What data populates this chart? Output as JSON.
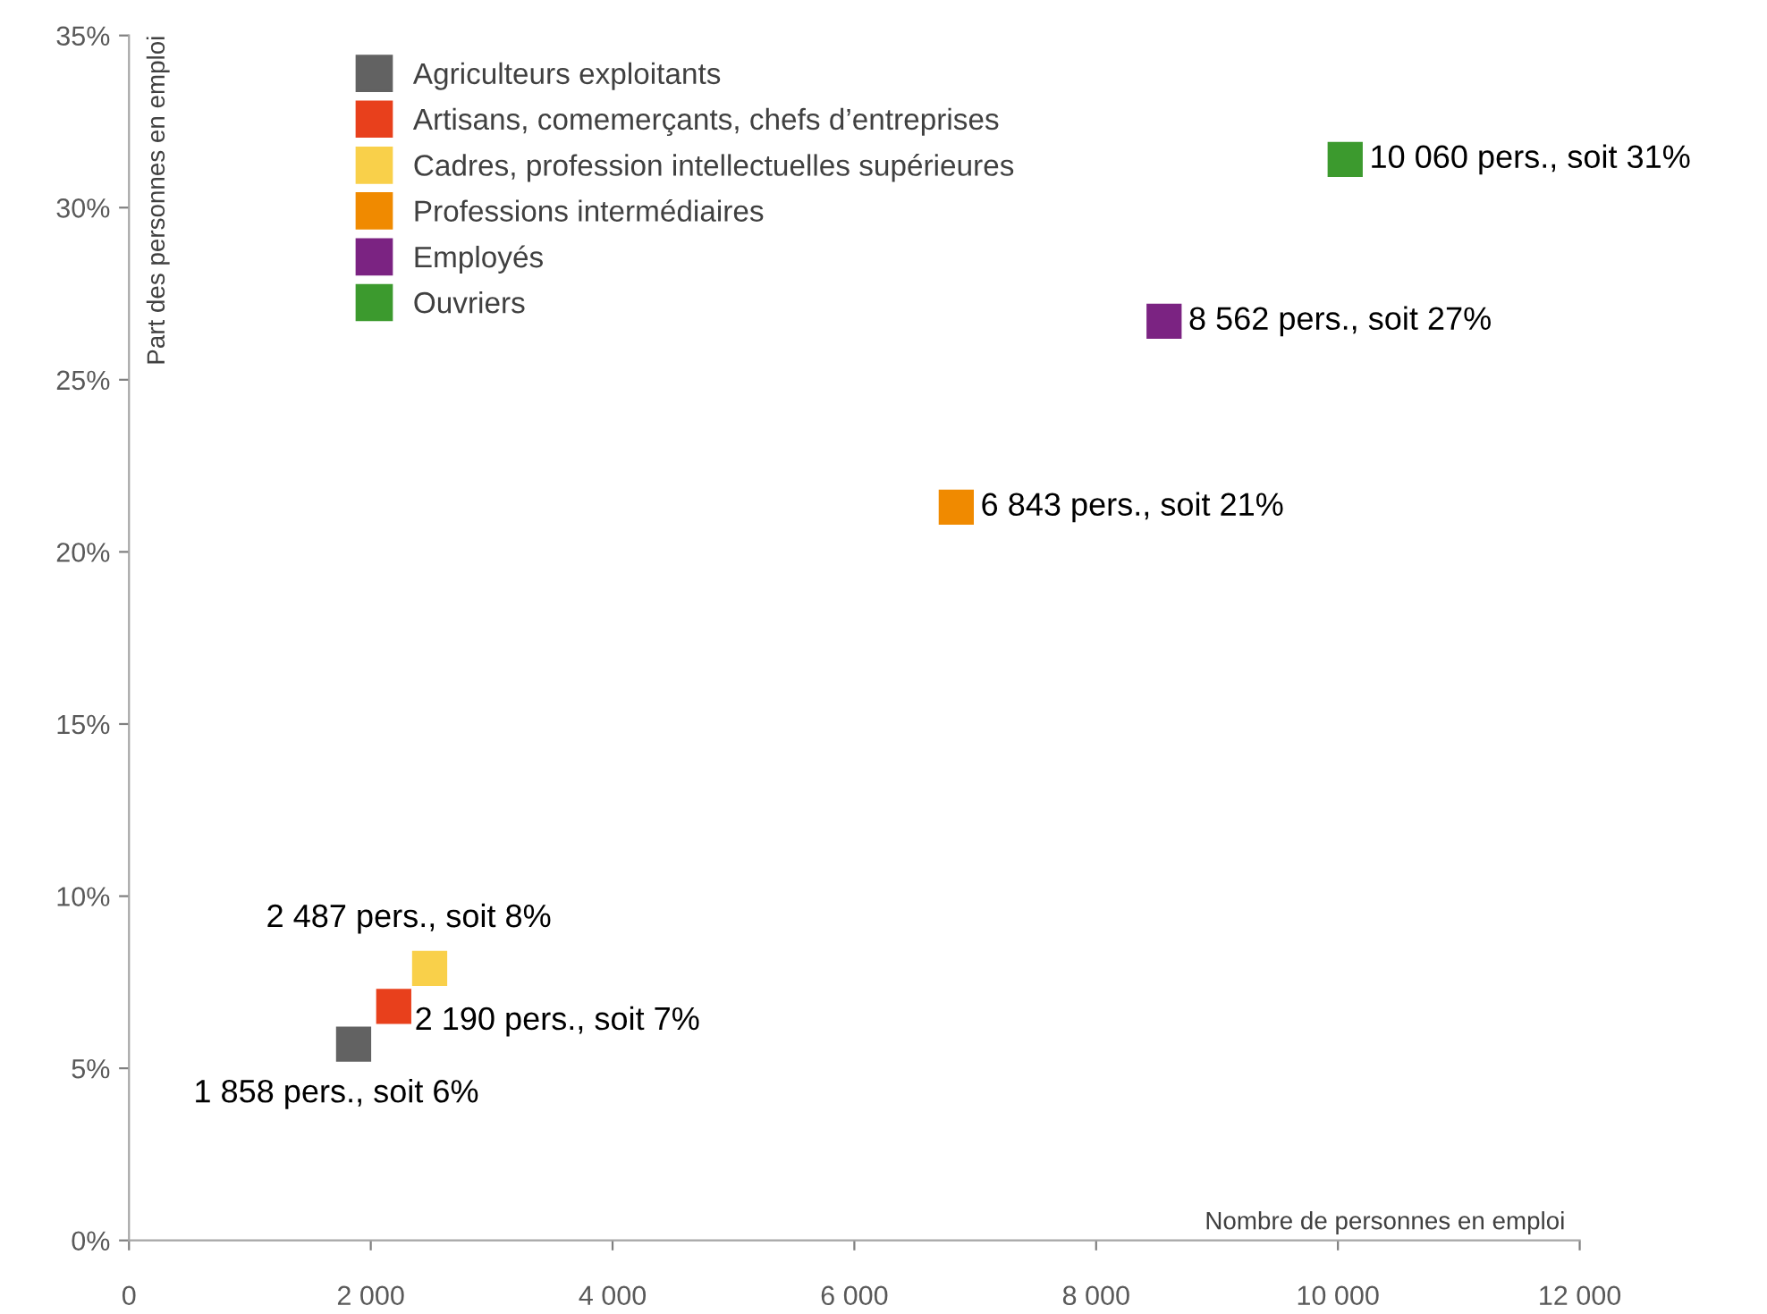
{
  "chart_data": {
    "type": "scatter",
    "xlabel": "Nombre de personnes en emploi",
    "ylabel": "Part des personnes en emploi",
    "xlim": [
      0,
      12000
    ],
    "xticks": [
      0,
      {
        "value": 2000,
        "label": "2 000"
      },
      {
        "value": 4000,
        "label": "4 000"
      },
      {
        "value": 6000,
        "label": "6 000"
      },
      {
        "value": 8000,
        "label": "8 000"
      },
      {
        "value": 10000,
        "label": "10 000"
      },
      {
        "value": 12000,
        "label": "12 000"
      }
    ],
    "ylim": [
      0,
      35
    ],
    "yticks": [
      {
        "value": 0,
        "label": "0%"
      },
      {
        "value": 5,
        "label": "5%"
      },
      {
        "value": 10,
        "label": "10%"
      },
      {
        "value": 15,
        "label": "15%"
      },
      {
        "value": 20,
        "label": "20%"
      },
      {
        "value": 25,
        "label": "25%"
      },
      {
        "value": 30,
        "label": "30%"
      },
      {
        "value": 35,
        "label": "35%"
      }
    ],
    "grid": false,
    "legend": "top left",
    "marker": "square",
    "series": [
      {
        "name": "Agriculteurs exploitants",
        "color": "#626262",
        "x": [
          1858
        ],
        "values": [
          5.7
        ],
        "value_labels": [
          "1 858 pers., soit 6%"
        ]
      },
      {
        "name": "Artisans, comemerçants, chefs d’entreprises",
        "color": "#e8401c",
        "x": [
          2190
        ],
        "values": [
          6.8
        ],
        "value_labels": [
          "2 190 pers., soit 7%"
        ]
      },
      {
        "name": "Cadres, profession intellectuelles supérieures",
        "color": "#f9d04a",
        "x": [
          2487
        ],
        "values": [
          7.9
        ],
        "value_labels": [
          "2 487 pers., soit 8%"
        ]
      },
      {
        "name": "Professions intermédiaires",
        "color": "#f08a00",
        "x": [
          6843
        ],
        "values": [
          21.3
        ],
        "value_labels": [
          "6 843 pers., soit 21%"
        ]
      },
      {
        "name": "Employés",
        "color": "#7b2382",
        "x": [
          8562
        ],
        "values": [
          26.7
        ],
        "value_labels": [
          "8 562 pers., soit 27%"
        ]
      },
      {
        "name": "Ouvriers",
        "color": "#3c9a2e",
        "x": [
          10060
        ],
        "values": [
          31.4
        ],
        "value_labels": [
          "10 060 pers., soit 31%"
        ]
      }
    ]
  }
}
